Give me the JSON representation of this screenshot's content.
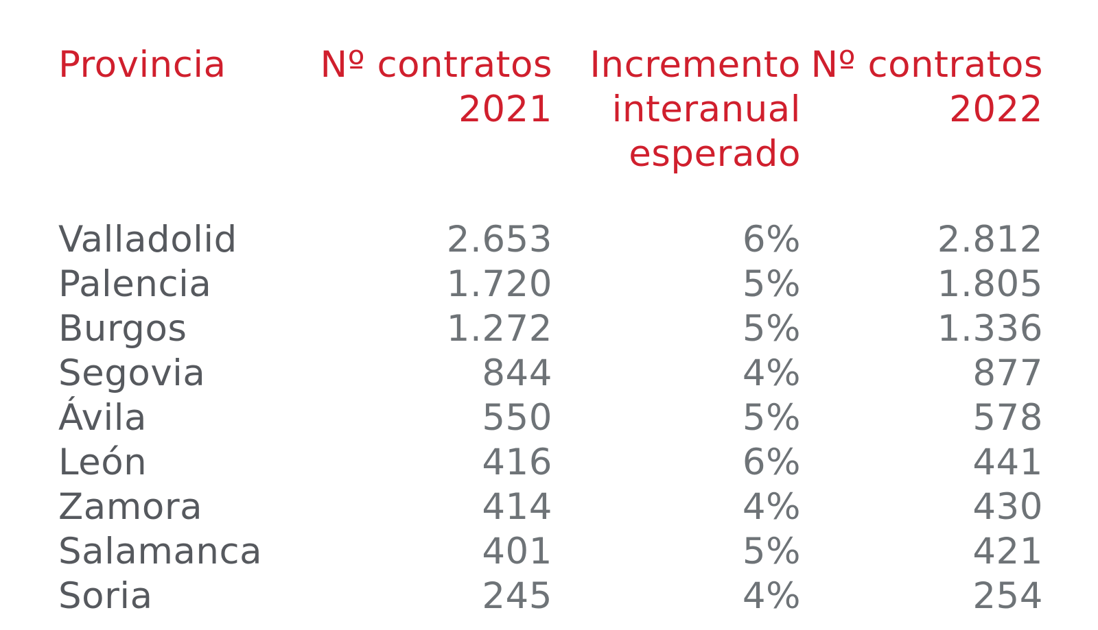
{
  "colors": {
    "header_red": "#d01f2d",
    "province_gray": "#56595e",
    "value_gray": "#6e7377",
    "background": "#ffffff"
  },
  "chart_data": {
    "type": "table",
    "columns": [
      "Provincia",
      "Nº contratos 2021",
      "Incremento interanual esperado",
      "Nº contratos 2022"
    ],
    "rows": [
      [
        "Valladolid",
        "2.653",
        "6%",
        "2.812"
      ],
      [
        "Palencia",
        "1.720",
        "5%",
        "1.805"
      ],
      [
        "Burgos",
        "1.272",
        "5%",
        "1.336"
      ],
      [
        "Segovia",
        "844",
        "4%",
        "877"
      ],
      [
        "Ávila",
        "550",
        "5%",
        "578"
      ],
      [
        "León",
        "416",
        "6%",
        "441"
      ],
      [
        "Zamora",
        "414",
        "4%",
        "430"
      ],
      [
        "Salamanca",
        "401",
        "5%",
        "421"
      ],
      [
        "Soria",
        "245",
        "4%",
        "254"
      ]
    ]
  },
  "table": {
    "headers": [
      {
        "lines": [
          "Provincia"
        ]
      },
      {
        "lines": [
          "Nº contratos",
          "2021"
        ]
      },
      {
        "lines": [
          "Incremento",
          "interanual",
          "esperado"
        ]
      },
      {
        "lines": [
          "Nº contratos",
          "2022"
        ]
      }
    ]
  }
}
